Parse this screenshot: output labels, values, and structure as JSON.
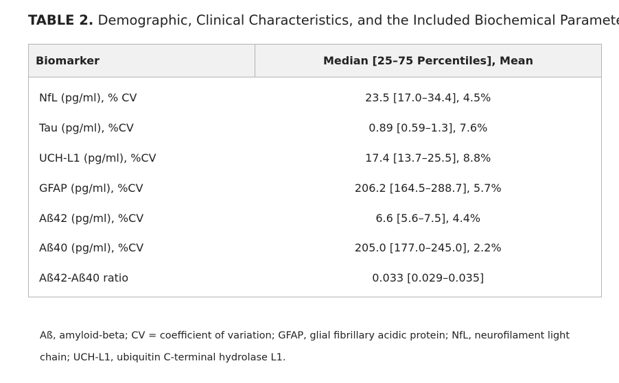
{
  "caption": {
    "label": "TABLE 2.",
    "title": "Demographic, Clinical Characteristics, and the Included Biochemical Parameters"
  },
  "table": {
    "headers": [
      "Biomarker",
      "Median [25–75 Percentiles], Mean"
    ],
    "rows": [
      {
        "biomarker": "NfL (pg/ml), % CV",
        "value": "23.5 [17.0–34.4], 4.5%"
      },
      {
        "biomarker": "Tau (pg/ml), %CV",
        "value": "0.89 [0.59–1.3], 7.6%"
      },
      {
        "biomarker": "UCH-L1 (pg/ml), %CV",
        "value": "17.4 [13.7–25.5], 8.8%"
      },
      {
        "biomarker": "GFAP (pg/ml), %CV",
        "value": "206.2 [164.5–288.7], 5.7%"
      },
      {
        "biomarker": "Aß42 (pg/ml), %CV",
        "value": "6.6 [5.6–7.5], 4.4%"
      },
      {
        "biomarker": "Aß40 (pg/ml), %CV",
        "value": "205.0 [177.0–245.0], 2.2%"
      },
      {
        "biomarker": "Aß42-Aß40 ratio",
        "value": "0.033 [0.029–0.035]"
      }
    ]
  },
  "footnote": "Aß, amyloid-beta; CV = coefficient of variation; GFAP, glial fibrillary acidic protein; NfL, neurofilament light chain; UCH-L1, ubiquitin C-terminal hydrolase L1."
}
